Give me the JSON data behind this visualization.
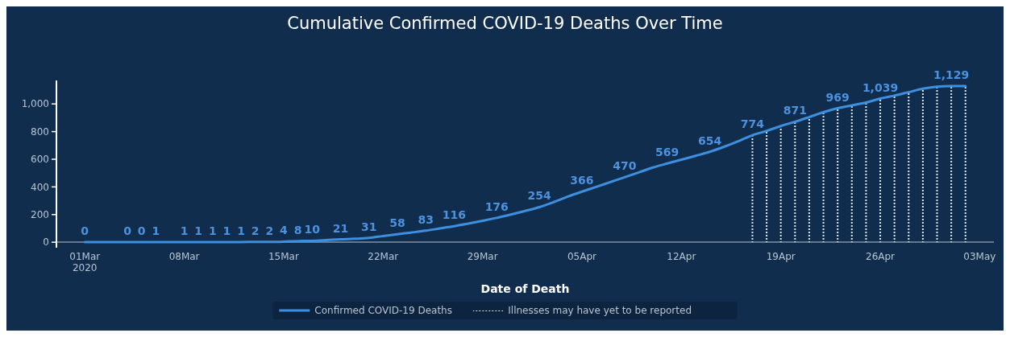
{
  "chart_data": {
    "type": "line",
    "title": "Cumulative Confirmed COVID-19 Deaths Over Time",
    "xlabel": "Date of Death",
    "x": [
      "2020-03-01",
      "2020-03-02",
      "2020-03-03",
      "2020-03-04",
      "2020-03-05",
      "2020-03-06",
      "2020-03-07",
      "2020-03-08",
      "2020-03-09",
      "2020-03-10",
      "2020-03-11",
      "2020-03-12",
      "2020-03-13",
      "2020-03-14",
      "2020-03-15",
      "2020-03-16",
      "2020-03-17",
      "2020-03-18",
      "2020-03-19",
      "2020-03-20",
      "2020-03-21",
      "2020-03-22",
      "2020-03-23",
      "2020-03-24",
      "2020-03-25",
      "2020-03-26",
      "2020-03-27",
      "2020-03-28",
      "2020-03-29",
      "2020-03-30",
      "2020-03-31",
      "2020-04-01",
      "2020-04-02",
      "2020-04-03",
      "2020-04-04",
      "2020-04-05",
      "2020-04-06",
      "2020-04-07",
      "2020-04-08",
      "2020-04-09",
      "2020-04-10",
      "2020-04-11",
      "2020-04-12",
      "2020-04-13",
      "2020-04-14",
      "2020-04-15",
      "2020-04-16",
      "2020-04-17",
      "2020-04-18",
      "2020-04-19",
      "2020-04-20",
      "2020-04-21",
      "2020-04-22",
      "2020-04-23",
      "2020-04-24",
      "2020-04-25",
      "2020-04-26",
      "2020-04-27",
      "2020-04-28",
      "2020-04-29",
      "2020-04-30",
      "2020-05-01",
      "2020-05-02"
    ],
    "series": [
      {
        "name": "Confirmed COVID-19 Deaths",
        "color": "#3d8fe0",
        "values": [
          0,
          0,
          0,
          0,
          0,
          1,
          1,
          1,
          1,
          1,
          1,
          1,
          2,
          2,
          4,
          8,
          10,
          15,
          21,
          25,
          31,
          45,
          58,
          70,
          83,
          100,
          116,
          135,
          155,
          176,
          200,
          226,
          254,
          290,
          330,
          366,
          400,
          435,
          470,
          505,
          540,
          569,
          597,
          625,
          654,
          690,
          730,
          774,
          805,
          840,
          871,
          905,
          940,
          969,
          990,
          1010,
          1039,
          1060,
          1085,
          1110,
          1125,
          1129,
          1129
        ],
        "value_labels": [
          "0",
          null,
          null,
          "0",
          "0",
          "1",
          null,
          "1",
          "1",
          "1",
          "1",
          "1",
          "2",
          "2",
          "4",
          "8",
          "10",
          null,
          "21",
          null,
          "31",
          null,
          "58",
          null,
          "83",
          null,
          "116",
          null,
          null,
          "176",
          null,
          null,
          "254",
          null,
          null,
          "366",
          null,
          null,
          "470",
          null,
          null,
          "569",
          null,
          null,
          "654",
          null,
          null,
          "774",
          null,
          null,
          "871",
          null,
          null,
          "969",
          null,
          null,
          "1,039",
          null,
          null,
          null,
          null,
          "1,129",
          null
        ]
      },
      {
        "name": "Illnesses may have yet to be reported",
        "type": "bar",
        "color": "#d8e4f0",
        "line_style": "dotted",
        "values": [
          null,
          null,
          null,
          null,
          null,
          null,
          null,
          null,
          null,
          null,
          null,
          null,
          null,
          null,
          null,
          null,
          null,
          null,
          null,
          null,
          null,
          null,
          null,
          null,
          null,
          null,
          null,
          null,
          null,
          null,
          null,
          null,
          null,
          null,
          null,
          null,
          null,
          null,
          null,
          null,
          null,
          null,
          null,
          null,
          null,
          null,
          null,
          774,
          805,
          840,
          871,
          905,
          940,
          969,
          990,
          1010,
          1039,
          1060,
          1085,
          1110,
          1125,
          1129,
          1129
        ]
      }
    ],
    "xlim": [
      "2020-02-28",
      "2020-05-04"
    ],
    "xticks": [
      {
        "value": "2020-03-01",
        "label": "01Mar\n2020"
      },
      {
        "value": "2020-03-08",
        "label": "08Mar"
      },
      {
        "value": "2020-03-15",
        "label": "15Mar"
      },
      {
        "value": "2020-03-22",
        "label": "22Mar"
      },
      {
        "value": "2020-03-29",
        "label": "29Mar"
      },
      {
        "value": "2020-04-05",
        "label": "05Apr"
      },
      {
        "value": "2020-04-12",
        "label": "12Apr"
      },
      {
        "value": "2020-04-19",
        "label": "19Apr"
      },
      {
        "value": "2020-04-26",
        "label": "26Apr"
      },
      {
        "value": "2020-05-03",
        "label": "03May"
      }
    ],
    "ylim": [
      -40,
      1170
    ],
    "yticks": [
      0,
      200,
      400,
      600,
      800,
      {
        "value": 1000,
        "label": "1,000"
      }
    ],
    "grid": false,
    "legend": "bottom",
    "marker": "none"
  }
}
